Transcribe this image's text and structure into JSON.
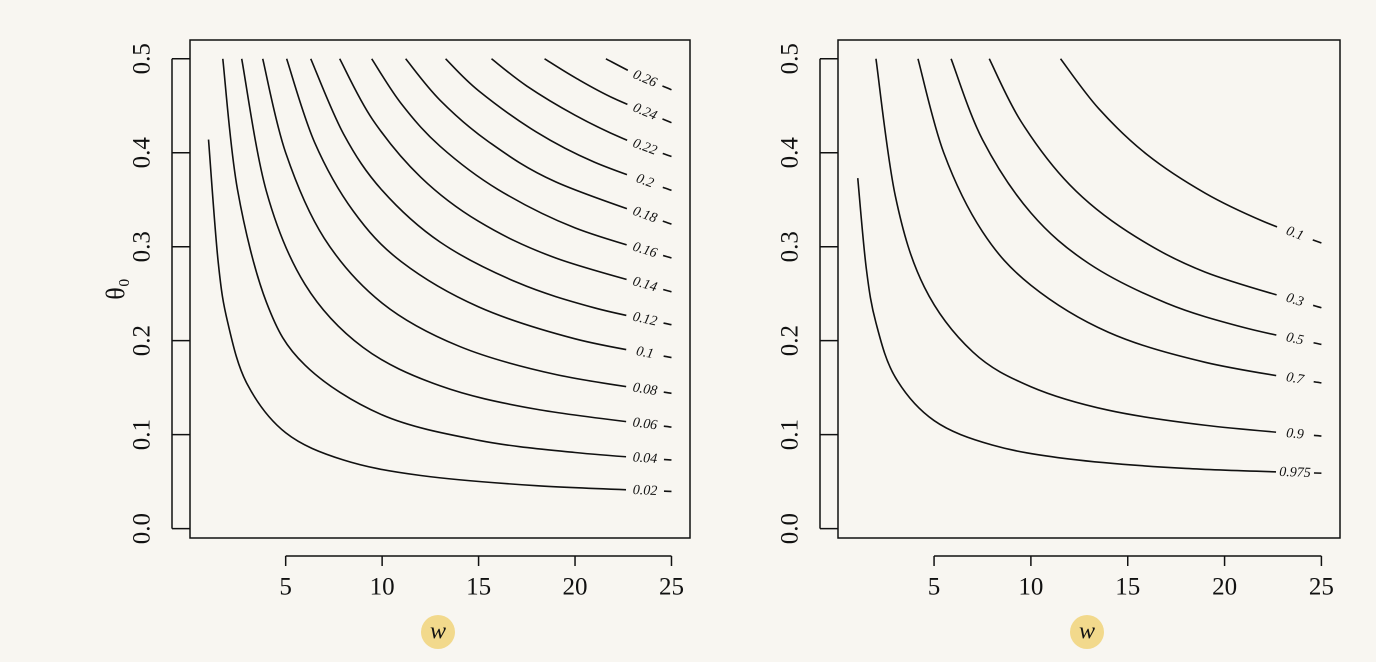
{
  "chart_data": [
    {
      "type": "contour",
      "xlabel": "w",
      "ylabel": "θ₀",
      "xlim": [
        0.04,
        25.96
      ],
      "ylim": [
        -0.01,
        0.52
      ],
      "xticks": [
        5,
        10,
        15,
        20,
        25
      ],
      "yticks": [
        {
          "value": 0,
          "label": "0.0"
        },
        0.1,
        0.2,
        0.3,
        0.4,
        0.5
      ],
      "contours": [
        {
          "level": 0.02,
          "x": [
            1,
            1.5,
            2,
            3,
            5,
            8,
            12,
            18,
            25
          ],
          "y": [
            0.414,
            0.284,
            0.219,
            0.154,
            0.102,
            0.073,
            0.0565,
            0.0457,
            0.0396
          ]
        },
        {
          "level": 0.04,
          "x": [
            1.74,
            2.5,
            4,
            6,
            10,
            15,
            20,
            25
          ],
          "y": [
            0.5,
            0.361,
            0.241,
            0.174,
            0.121,
            0.094,
            0.081,
            0.073
          ]
        },
        {
          "level": 0.06,
          "x": [
            2.72,
            4,
            6,
            9,
            13,
            18,
            25
          ],
          "y": [
            0.5,
            0.359,
            0.26,
            0.193,
            0.152,
            0.127,
            0.108
          ]
        },
        {
          "level": 0.08,
          "x": [
            3.81,
            5,
            7,
            10,
            14,
            19,
            25
          ],
          "y": [
            0.5,
            0.4,
            0.309,
            0.24,
            0.194,
            0.164,
            0.144
          ]
        },
        {
          "level": 0.1,
          "x": [
            5.05,
            6.5,
            8.5,
            11,
            15,
            20,
            25
          ],
          "y": [
            0.5,
            0.411,
            0.338,
            0.284,
            0.236,
            0.202,
            0.182
          ]
        },
        {
          "level": 0.12,
          "x": [
            6.3,
            8,
            10,
            13,
            17,
            21,
            25
          ],
          "y": [
            0.5,
            0.42,
            0.36,
            0.305,
            0.262,
            0.235,
            0.217
          ]
        },
        {
          "level": 0.14,
          "x": [
            7.8,
            9.5,
            12,
            15,
            19,
            25
          ],
          "y": [
            0.5,
            0.4355,
            0.374,
            0.327,
            0.288,
            0.252
          ]
        },
        {
          "level": 0.16,
          "x": [
            9.46,
            11,
            13,
            16,
            20,
            25
          ],
          "y": [
            0.5,
            0.452,
            0.407,
            0.361,
            0.32,
            0.288
          ]
        },
        {
          "level": 0.18,
          "x": [
            11.22,
            13,
            15.5,
            19,
            25
          ],
          "y": [
            0.5,
            0.456,
            0.412,
            0.369,
            0.324
          ]
        },
        {
          "level": 0.2,
          "x": [
            13.29,
            15,
            18,
            21,
            25
          ],
          "y": [
            0.5,
            0.466,
            0.422,
            0.39,
            0.36
          ]
        },
        {
          "level": 0.22,
          "x": [
            15.67,
            17.5,
            20,
            22.5,
            25
          ],
          "y": [
            0.5,
            0.471,
            0.44,
            0.415,
            0.396
          ]
        },
        {
          "level": 0.24,
          "x": [
            18.42,
            20,
            22,
            25
          ],
          "y": [
            0.5,
            0.48,
            0.458,
            0.432
          ]
        },
        {
          "level": 0.26,
          "x": [
            21.6,
            23.3,
            25
          ],
          "y": [
            0.5,
            0.482,
            0.467
          ]
        }
      ]
    },
    {
      "type": "contour",
      "xlabel": "w",
      "xlim": [
        0.04,
        25.96
      ],
      "ylim": [
        -0.01,
        0.52
      ],
      "xticks": [
        5,
        10,
        15,
        20,
        25
      ],
      "yticks": [
        {
          "value": 0,
          "label": "0.0"
        },
        0.1,
        0.2,
        0.3,
        0.4,
        0.5
      ],
      "contours": [
        {
          "level": 0.975,
          "x": [
            1.06,
            1.5,
            2,
            3,
            5,
            8,
            12,
            18,
            25
          ],
          "y": [
            0.373,
            0.277,
            0.219,
            0.161,
            0.115,
            0.089,
            0.074,
            0.064,
            0.059
          ]
        },
        {
          "level": 0.9,
          "x": [
            2,
            3,
            4.5,
            7,
            10,
            14,
            19,
            25
          ],
          "y": [
            0.5,
            0.354,
            0.257,
            0.188,
            0.151,
            0.126,
            0.11,
            0.0985
          ]
        },
        {
          "level": 0.7,
          "x": [
            4.17,
            5.5,
            7.5,
            10,
            14,
            19,
            25
          ],
          "y": [
            0.5,
            0.4,
            0.316,
            0.259,
            0.209,
            0.177,
            0.155
          ]
        },
        {
          "level": 0.5,
          "x": [
            5.88,
            7.5,
            10,
            13,
            17,
            21,
            25
          ],
          "y": [
            0.5,
            0.414,
            0.336,
            0.282,
            0.24,
            0.214,
            0.196
          ]
        },
        {
          "level": 0.3,
          "x": [
            7.85,
            9.5,
            12,
            15,
            19,
            25
          ],
          "y": [
            0.5,
            0.433,
            0.366,
            0.316,
            0.273,
            0.235
          ]
        },
        {
          "level": 0.1,
          "x": [
            11.53,
            13.5,
            16,
            19,
            22,
            25
          ],
          "y": [
            0.5,
            0.447,
            0.398,
            0.357,
            0.327,
            0.304
          ]
        }
      ]
    }
  ]
}
